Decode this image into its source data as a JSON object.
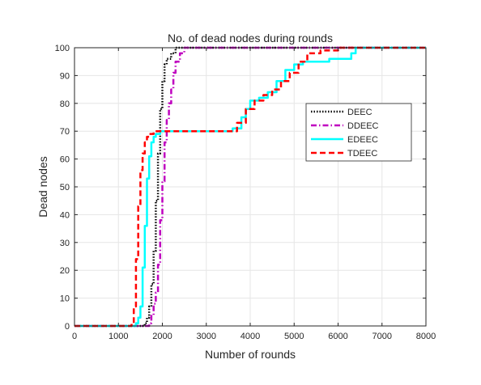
{
  "chart_data": {
    "type": "line",
    "title": "No. of dead nodes during rounds",
    "xlabel": "Number of rounds",
    "ylabel": "Dead nodes",
    "xlim": [
      0,
      8000
    ],
    "ylim": [
      0,
      100
    ],
    "xticks": [
      "0",
      "1000",
      "2000",
      "3000",
      "4000",
      "5000",
      "6000",
      "7000",
      "8000"
    ],
    "yticks": [
      "0",
      "10",
      "20",
      "30",
      "40",
      "50",
      "60",
      "70",
      "80",
      "90",
      "100"
    ],
    "grid": true,
    "legend_position": "right",
    "series": [
      {
        "name": "DEEC",
        "color": "#000000",
        "style": "dotted",
        "points": [
          [
            0,
            0
          ],
          [
            1550,
            0
          ],
          [
            1600,
            1
          ],
          [
            1650,
            3
          ],
          [
            1700,
            7
          ],
          [
            1750,
            15
          ],
          [
            1800,
            27
          ],
          [
            1850,
            45
          ],
          [
            1900,
            62
          ],
          [
            1950,
            78
          ],
          [
            2000,
            88
          ],
          [
            2050,
            94
          ],
          [
            2100,
            96
          ],
          [
            2200,
            98
          ],
          [
            2300,
            100
          ],
          [
            8000,
            100
          ]
        ]
      },
      {
        "name": "DDEEC",
        "color": "#bf00bf",
        "style": "dashdot",
        "points": [
          [
            0,
            0
          ],
          [
            1650,
            0
          ],
          [
            1700,
            1
          ],
          [
            1750,
            4
          ],
          [
            1800,
            8
          ],
          [
            1850,
            12
          ],
          [
            1900,
            22
          ],
          [
            1950,
            38
          ],
          [
            2000,
            52
          ],
          [
            2050,
            66
          ],
          [
            2100,
            74
          ],
          [
            2150,
            80
          ],
          [
            2200,
            85
          ],
          [
            2250,
            91
          ],
          [
            2300,
            95
          ],
          [
            2400,
            98
          ],
          [
            2500,
            100
          ],
          [
            8000,
            100
          ]
        ]
      },
      {
        "name": "EDEEC",
        "color": "#00ffff",
        "style": "solid",
        "points": [
          [
            0,
            0
          ],
          [
            1350,
            0
          ],
          [
            1400,
            1
          ],
          [
            1450,
            3
          ],
          [
            1500,
            7
          ],
          [
            1550,
            21
          ],
          [
            1600,
            36
          ],
          [
            1650,
            53
          ],
          [
            1700,
            61
          ],
          [
            1750,
            66
          ],
          [
            1800,
            68
          ],
          [
            1850,
            69
          ],
          [
            1950,
            70
          ],
          [
            3500,
            70
          ],
          [
            3600,
            71
          ],
          [
            3800,
            75
          ],
          [
            3900,
            78
          ],
          [
            4000,
            81
          ],
          [
            4200,
            82
          ],
          [
            4400,
            84
          ],
          [
            4600,
            88
          ],
          [
            4800,
            92
          ],
          [
            5000,
            94
          ],
          [
            5200,
            95
          ],
          [
            5500,
            95
          ],
          [
            5800,
            96
          ],
          [
            6100,
            96
          ],
          [
            6300,
            98
          ],
          [
            6400,
            100
          ],
          [
            8000,
            100
          ]
        ]
      },
      {
        "name": "TDEEC",
        "color": "#ff0000",
        "style": "dashed",
        "points": [
          [
            0,
            0
          ],
          [
            1250,
            0
          ],
          [
            1300,
            1
          ],
          [
            1350,
            7
          ],
          [
            1400,
            24
          ],
          [
            1450,
            43
          ],
          [
            1500,
            56
          ],
          [
            1550,
            62
          ],
          [
            1600,
            66
          ],
          [
            1650,
            68
          ],
          [
            1700,
            69
          ],
          [
            1800,
            70
          ],
          [
            3500,
            70
          ],
          [
            3700,
            73
          ],
          [
            3900,
            78
          ],
          [
            4100,
            81
          ],
          [
            4300,
            83
          ],
          [
            4500,
            85
          ],
          [
            4700,
            88
          ],
          [
            4900,
            91
          ],
          [
            5100,
            95
          ],
          [
            5300,
            98
          ],
          [
            5600,
            99
          ],
          [
            6000,
            100
          ],
          [
            8000,
            100
          ]
        ]
      }
    ]
  }
}
